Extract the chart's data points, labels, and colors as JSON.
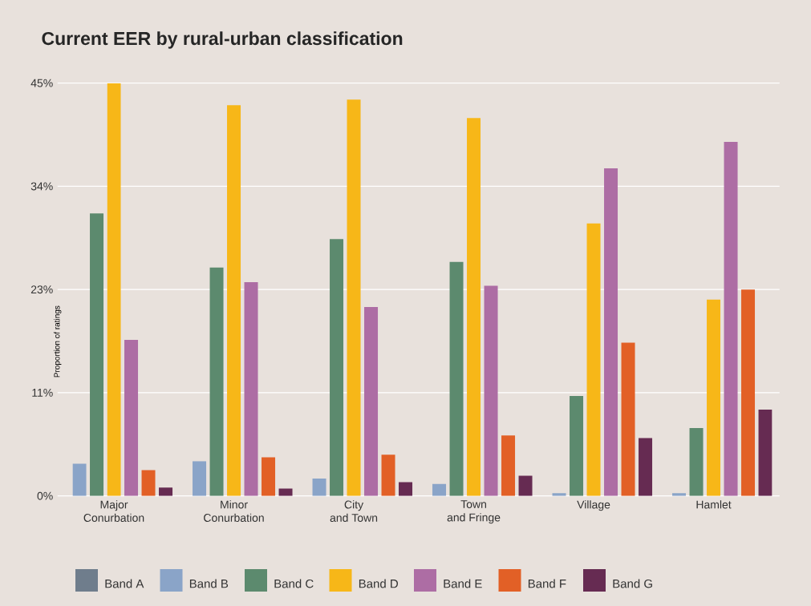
{
  "chart_data": {
    "type": "bar",
    "title": "Current EER by rural-urban classification",
    "ylabel": "Proportion of ratings",
    "categories": [
      "Major\nConurbation",
      "Minor\nConurbation",
      "City\nand Town",
      "Town\nand Fringe",
      "Village",
      "Hamlet"
    ],
    "series": [
      {
        "name": "Band A",
        "color": "#6f7d8c",
        "values": [
          0,
          0,
          0,
          0,
          0,
          0
        ]
      },
      {
        "name": "Band B",
        "color": "#8aa4c8",
        "values": [
          3.5,
          3.8,
          1.9,
          1.3,
          0.3,
          0.3
        ]
      },
      {
        "name": "Band C",
        "color": "#5c8a6e",
        "values": [
          30.8,
          24.9,
          28.0,
          25.5,
          10.9,
          7.4
        ]
      },
      {
        "name": "Band D",
        "color": "#f7b718",
        "values": [
          45,
          42.6,
          43.2,
          41.2,
          29.7,
          21.4
        ]
      },
      {
        "name": "Band E",
        "color": "#ad6da4",
        "values": [
          17.0,
          23.3,
          20.6,
          22.9,
          35.7,
          38.6
        ]
      },
      {
        "name": "Band F",
        "color": "#e26026",
        "values": [
          2.8,
          4.2,
          4.5,
          6.6,
          16.7,
          22.5
        ]
      },
      {
        "name": "Band G",
        "color": "#662b52",
        "values": [
          0.9,
          0.8,
          1.5,
          2.2,
          6.3,
          9.4
        ]
      }
    ],
    "ylim": [
      0,
      45
    ],
    "yticks": [
      {
        "value": 0,
        "label": "0%"
      },
      {
        "value": 11.25,
        "label": "11%"
      },
      {
        "value": 22.5,
        "label": "23%"
      },
      {
        "value": 33.75,
        "label": "34%"
      },
      {
        "value": 45,
        "label": "45%"
      }
    ],
    "grid": "y",
    "legend": "bottom"
  }
}
